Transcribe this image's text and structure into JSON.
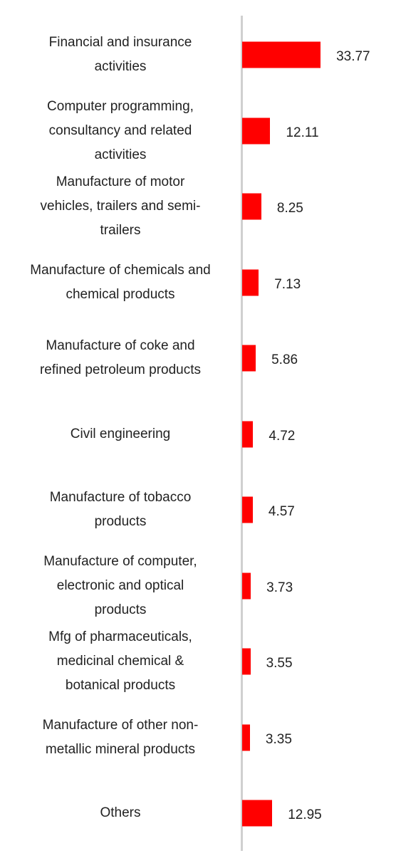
{
  "chart_data": {
    "type": "bar",
    "orientation": "horizontal",
    "color": "#ff0000",
    "categories": [
      "Financial and insurance\nactivities",
      "Computer programming,\nconsultancy and related\nactivities",
      "Manufacture of motor\nvehicles, trailers and semi-\ntrailers",
      "Manufacture of chemicals and\nchemical products",
      "Manufacture of coke and\nrefined petroleum products",
      "Civil engineering",
      "Manufacture of tobacco\nproducts",
      "Manufacture of computer,\nelectronic and optical\nproducts",
      "Mfg of pharmaceuticals,\nmedicinal chemical &\nbotanical products",
      "Manufacture of other non-\nmetallic mineral products",
      "Others"
    ],
    "values": [
      33.77,
      12.11,
      8.25,
      7.13,
      5.86,
      4.72,
      4.57,
      3.73,
      3.55,
      3.35,
      12.95
    ]
  }
}
